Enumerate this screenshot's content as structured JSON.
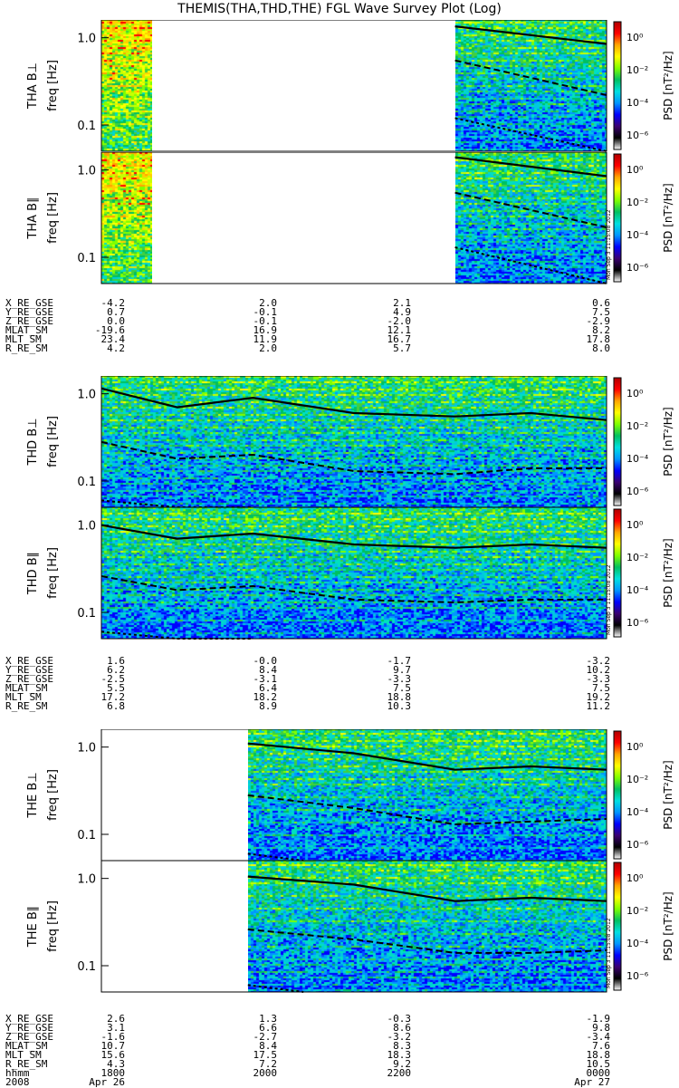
{
  "title": "THEMIS(THA,THD,THE) FGL Wave Survey Plot (Log)",
  "colorbar": {
    "label": "PSD [nT²/Hz]",
    "ticks": [
      "10⁰",
      "10⁻²",
      "10⁻⁴",
      "10⁻⁶"
    ],
    "colors": [
      "#ffffff",
      "#000000",
      "#3a0070",
      "#0000ff",
      "#0096ff",
      "#00e0e0",
      "#00c060",
      "#7fff00",
      "#ffff00",
      "#ffa500",
      "#ff0000",
      "#b00000"
    ]
  },
  "stamp": "Mon Sep 3 11:15:08 2012",
  "chart_data": [
    {
      "type": "heatmap",
      "ylabel": "THA B⊥",
      "yunit": "freq [Hz]",
      "yscale": "log",
      "ylim": [
        0.05,
        1.6
      ],
      "yticks": [
        "1.0",
        "0.1"
      ],
      "coverage": [
        [
          0.0,
          0.1
        ],
        [
          0.7,
          1.0
        ]
      ],
      "lines": {
        "solid": [
          [
            0.7,
            1.35
          ],
          [
            1.0,
            0.85
          ]
        ],
        "dashed": [
          [
            0.7,
            0.55
          ],
          [
            1.0,
            0.22
          ]
        ],
        "dotted": [
          [
            0.7,
            0.12
          ],
          [
            1.0,
            0.05
          ]
        ]
      }
    },
    {
      "type": "heatmap",
      "ylabel": "THA B∥",
      "yunit": "freq [Hz]",
      "yscale": "log",
      "ylim": [
        0.05,
        1.6
      ],
      "yticks": [
        "1.0",
        "0.1"
      ],
      "coverage": [
        [
          0.0,
          0.1
        ],
        [
          0.7,
          1.0
        ]
      ],
      "lines": {
        "solid": [
          [
            0.7,
            1.4
          ],
          [
            1.0,
            0.85
          ]
        ],
        "dashed": [
          [
            0.7,
            0.55
          ],
          [
            1.0,
            0.22
          ]
        ],
        "dotted": [
          [
            0.7,
            0.13
          ],
          [
            1.0,
            0.05
          ]
        ]
      }
    },
    {
      "type": "heatmap",
      "ylabel": "THD B⊥",
      "yunit": "freq [Hz]",
      "yscale": "log",
      "ylim": [
        0.05,
        1.6
      ],
      "yticks": [
        "1.0",
        "0.1"
      ],
      "coverage": [
        [
          0.0,
          1.0
        ]
      ],
      "lines": {
        "solid": [
          [
            0,
            1.15
          ],
          [
            0.15,
            0.7
          ],
          [
            0.3,
            0.9
          ],
          [
            0.5,
            0.6
          ],
          [
            0.7,
            0.55
          ],
          [
            0.85,
            0.6
          ],
          [
            1.0,
            0.5
          ]
        ],
        "dashed": [
          [
            0,
            0.28
          ],
          [
            0.15,
            0.18
          ],
          [
            0.3,
            0.2
          ],
          [
            0.5,
            0.13
          ],
          [
            0.7,
            0.12
          ],
          [
            0.85,
            0.14
          ],
          [
            1.0,
            0.14
          ]
        ],
        "dotted": [
          [
            0,
            0.06
          ],
          [
            0.15,
            0.05
          ],
          [
            0.3,
            0.05
          ]
        ]
      }
    },
    {
      "type": "heatmap",
      "ylabel": "THD B∥",
      "yunit": "freq [Hz]",
      "yscale": "log",
      "ylim": [
        0.05,
        1.6
      ],
      "yticks": [
        "1.0",
        "0.1"
      ],
      "coverage": [
        [
          0.0,
          1.0
        ]
      ],
      "lines": {
        "solid": [
          [
            0,
            1.0
          ],
          [
            0.15,
            0.7
          ],
          [
            0.3,
            0.8
          ],
          [
            0.5,
            0.6
          ],
          [
            0.7,
            0.55
          ],
          [
            0.85,
            0.6
          ],
          [
            1.0,
            0.55
          ]
        ],
        "dashed": [
          [
            0,
            0.26
          ],
          [
            0.15,
            0.18
          ],
          [
            0.3,
            0.2
          ],
          [
            0.5,
            0.14
          ],
          [
            0.7,
            0.13
          ],
          [
            0.85,
            0.14
          ],
          [
            1.0,
            0.14
          ]
        ],
        "dotted": [
          [
            0,
            0.06
          ],
          [
            0.15,
            0.05
          ],
          [
            0.3,
            0.05
          ]
        ]
      }
    },
    {
      "type": "heatmap",
      "ylabel": "THE B⊥",
      "yunit": "freq [Hz]",
      "yscale": "log",
      "ylim": [
        0.05,
        1.6
      ],
      "yticks": [
        "1.0",
        "0.1"
      ],
      "coverage": [
        [
          0.29,
          1.0
        ]
      ],
      "lines": {
        "solid": [
          [
            0.29,
            1.1
          ],
          [
            0.5,
            0.85
          ],
          [
            0.7,
            0.55
          ],
          [
            0.85,
            0.6
          ],
          [
            1.0,
            0.55
          ]
        ],
        "dashed": [
          [
            0.29,
            0.28
          ],
          [
            0.5,
            0.2
          ],
          [
            0.7,
            0.13
          ],
          [
            0.85,
            0.14
          ],
          [
            1.0,
            0.15
          ]
        ],
        "dotted": [
          [
            0.29,
            0.06
          ],
          [
            0.4,
            0.05
          ]
        ]
      }
    },
    {
      "type": "heatmap",
      "ylabel": "THE B∥",
      "yunit": "freq [Hz]",
      "yscale": "log",
      "ylim": [
        0.05,
        1.6
      ],
      "yticks": [
        "1.0",
        "0.1"
      ],
      "coverage": [
        [
          0.29,
          1.0
        ]
      ],
      "lines": {
        "solid": [
          [
            0.29,
            1.05
          ],
          [
            0.5,
            0.85
          ],
          [
            0.7,
            0.55
          ],
          [
            0.85,
            0.6
          ],
          [
            1.0,
            0.55
          ]
        ],
        "dashed": [
          [
            0.29,
            0.26
          ],
          [
            0.5,
            0.2
          ],
          [
            0.7,
            0.14
          ],
          [
            0.85,
            0.14
          ],
          [
            1.0,
            0.15
          ]
        ],
        "dotted": [
          [
            0.29,
            0.06
          ],
          [
            0.4,
            0.05
          ]
        ]
      }
    }
  ],
  "ephemeris": [
    {
      "rows": [
        {
          "label": "X_RE_GSE",
          "values": [
            "-4.2",
            "2.0",
            "2.1",
            "0.6"
          ]
        },
        {
          "label": "Y_RE_GSE",
          "values": [
            "0.7",
            "-0.1",
            "4.9",
            "7.5"
          ]
        },
        {
          "label": "Z_RE_GSE",
          "values": [
            "0.0",
            "-0.1",
            "-2.0",
            "-2.9"
          ]
        },
        {
          "label": "MLAT_SM",
          "values": [
            "-19.6",
            "16.9",
            "12.1",
            "8.2"
          ]
        },
        {
          "label": "MLT_SM",
          "values": [
            "23.4",
            "11.9",
            "16.7",
            "17.8"
          ]
        },
        {
          "label": "R_RE_SM",
          "values": [
            "4.2",
            "2.0",
            "5.7",
            "8.0"
          ]
        }
      ]
    },
    {
      "rows": [
        {
          "label": "X_RE_GSE",
          "values": [
            "1.6",
            "-0.0",
            "-1.7",
            "-3.2"
          ]
        },
        {
          "label": "Y_RE_GSE",
          "values": [
            "6.2",
            "8.4",
            "9.7",
            "10.2"
          ]
        },
        {
          "label": "Z_RE_GSE",
          "values": [
            "-2.5",
            "-3.1",
            "-3.3",
            "-3.3"
          ]
        },
        {
          "label": "MLAT_SM",
          "values": [
            "5.5",
            "6.4",
            "7.5",
            "7.5"
          ]
        },
        {
          "label": "MLT_SM",
          "values": [
            "17.2",
            "18.2",
            "18.8",
            "19.2"
          ]
        },
        {
          "label": "R_RE_SM",
          "values": [
            "6.8",
            "8.9",
            "10.3",
            "11.2"
          ]
        }
      ]
    },
    {
      "rows": [
        {
          "label": "X_RE_GSE",
          "values": [
            "2.6",
            "1.3",
            "-0.3",
            "-1.9"
          ]
        },
        {
          "label": "Y_RE_GSE",
          "values": [
            "3.1",
            "6.6",
            "8.6",
            "9.8"
          ]
        },
        {
          "label": "Z_RE_GSE",
          "values": [
            "-1.6",
            "-2.7",
            "-3.2",
            "-3.4"
          ]
        },
        {
          "label": "MLAT_SM",
          "values": [
            "10.7",
            "8.4",
            "8.3",
            "7.6"
          ]
        },
        {
          "label": "MLT_SM",
          "values": [
            "15.6",
            "17.5",
            "18.3",
            "18.8"
          ]
        },
        {
          "label": "R_RE_SM",
          "values": [
            "4.3",
            "7.2",
            "9.2",
            "10.5"
          ]
        },
        {
          "label": "hhmm",
          "values": [
            "1800",
            "2000",
            "2200",
            "0000"
          ]
        },
        {
          "label": "2008",
          "values": [
            "Apr 26",
            "",
            "",
            "Apr 27"
          ]
        }
      ]
    }
  ]
}
